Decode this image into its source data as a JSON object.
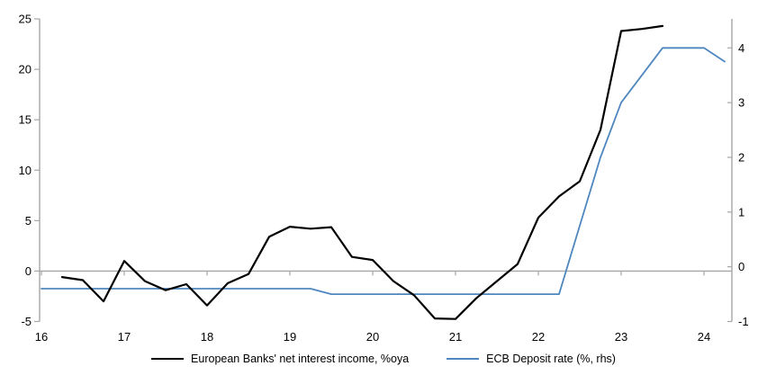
{
  "chart_data": {
    "type": "line",
    "title": "",
    "x_range": [
      16,
      24.33
    ],
    "x_ticks": [
      16,
      17,
      18,
      19,
      20,
      21,
      22,
      23,
      24
    ],
    "left_axis": {
      "range": [
        -5,
        25
      ],
      "ticks": [
        25,
        20,
        15,
        10,
        5,
        0,
        "-5"
      ]
    },
    "right_axis": {
      "range": [
        -1,
        4.53
      ],
      "ticks": [
        4,
        3,
        2,
        1,
        0,
        "-1"
      ]
    },
    "grid": "zero-line-only",
    "legend_position": "bottom-center",
    "colors": {
      "axis_gray": "#a6a6a6",
      "zero_line": "#a6a6a6",
      "black_series": "#000000",
      "blue_series": "#4e87bf"
    },
    "series": [
      {
        "name": "European Banks' net interest income, %oya",
        "axis": "left",
        "color": "#000000",
        "width": 2.2,
        "x": [
          16.25,
          16.5,
          16.75,
          17,
          17.25,
          17.5,
          17.75,
          18,
          18.25,
          18.5,
          18.75,
          19,
          19.25,
          19.5,
          19.75,
          20,
          20.25,
          20.5,
          20.75,
          21,
          21.25,
          21.5,
          21.75,
          22,
          22.25,
          22.5,
          22.75,
          23,
          23.25,
          23.5
        ],
        "values": [
          -0.6,
          -0.9,
          -3.0,
          1.0,
          -1.0,
          -1.9,
          -1.3,
          -3.4,
          -1.2,
          -0.3,
          3.4,
          4.4,
          4.2,
          4.35,
          1.4,
          1.1,
          -1.0,
          -2.4,
          -4.7,
          -4.75,
          -2.7,
          -1.0,
          0.7,
          5.3,
          7.4,
          8.9,
          14.0,
          23.8,
          24.0,
          24.3
        ]
      },
      {
        "name": "ECB Deposit rate (%, rhs)",
        "axis": "right",
        "color": "#4e87bf",
        "width": 1.8,
        "x": [
          16,
          16.25,
          16.5,
          16.75,
          17,
          17.25,
          17.5,
          17.75,
          18,
          18.25,
          18.5,
          18.75,
          19,
          19.25,
          19.5,
          19.75,
          20,
          20.25,
          20.5,
          20.75,
          21,
          21.25,
          21.5,
          21.75,
          22,
          22.25,
          22.5,
          22.75,
          23,
          23.25,
          23.5,
          23.75,
          24,
          24.25
        ],
        "values": [
          -0.4,
          -0.4,
          -0.4,
          -0.4,
          -0.4,
          -0.4,
          -0.4,
          -0.4,
          -0.4,
          -0.4,
          -0.4,
          -0.4,
          -0.4,
          -0.4,
          -0.5,
          -0.5,
          -0.5,
          -0.5,
          -0.5,
          -0.5,
          -0.5,
          -0.5,
          -0.5,
          -0.5,
          -0.5,
          -0.5,
          0.75,
          2.0,
          3.0,
          3.5,
          4.0,
          4.0,
          4.0,
          3.75
        ]
      }
    ],
    "legend": [
      {
        "label": "European Banks' net interest income, %oya"
      },
      {
        "label": "ECB Deposit rate (%, rhs)"
      }
    ]
  }
}
